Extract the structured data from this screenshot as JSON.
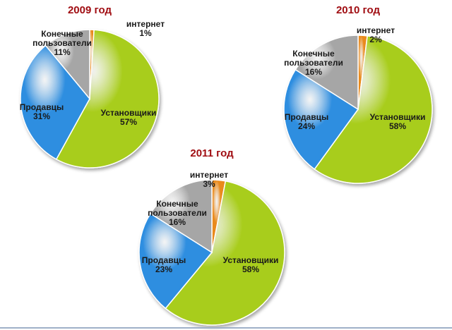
{
  "colors": {
    "installers": "#a8cd1b",
    "sellers": "#2f8ee0",
    "end_users": "#a6a6a6",
    "internet": "#e98a1c",
    "title": "#a00d12"
  },
  "chart_data": [
    {
      "type": "pie",
      "title": "2009 год",
      "slices": [
        {
          "key": "internet",
          "name": "интернет",
          "value": 1,
          "pct_label": "1%"
        },
        {
          "key": "installers",
          "name": "Установщики",
          "value": 57,
          "pct_label": "57%"
        },
        {
          "key": "sellers",
          "name": "Продавцы",
          "value": 31,
          "pct_label": "31%"
        },
        {
          "key": "end_users",
          "name": "Конечные пользователи",
          "name_lines": [
            "Конечные",
            "пользователи"
          ],
          "value": 11,
          "pct_label": "11%"
        }
      ]
    },
    {
      "type": "pie",
      "title": "2010 год",
      "slices": [
        {
          "key": "internet",
          "name": "интернет",
          "value": 2,
          "pct_label": "2%"
        },
        {
          "key": "installers",
          "name": "Установщики",
          "value": 58,
          "pct_label": "58%"
        },
        {
          "key": "sellers",
          "name": "Продавцы",
          "value": 24,
          "pct_label": "24%"
        },
        {
          "key": "end_users",
          "name": "Конечные пользователи",
          "name_lines": [
            "Конечные",
            "пользователи"
          ],
          "value": 16,
          "pct_label": "16%"
        }
      ]
    },
    {
      "type": "pie",
      "title": "2011 год",
      "slices": [
        {
          "key": "internet",
          "name": "интернет",
          "value": 3,
          "pct_label": "3%"
        },
        {
          "key": "installers",
          "name": "Установщики",
          "value": 58,
          "pct_label": "58%"
        },
        {
          "key": "sellers",
          "name": "Продавцы",
          "value": 23,
          "pct_label": "23%"
        },
        {
          "key": "end_users",
          "name": "Конечные пользователи",
          "name_lines": [
            "Конечные",
            "пользователи"
          ],
          "value": 16,
          "pct_label": "16%"
        }
      ]
    }
  ]
}
